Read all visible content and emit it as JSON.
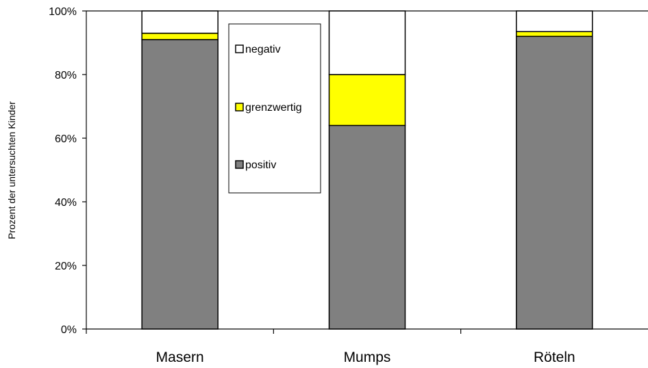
{
  "chart_data": {
    "type": "bar",
    "stacked": true,
    "percent": true,
    "categories": [
      "Masern",
      "Mumps",
      "Röteln"
    ],
    "series": [
      {
        "name": "positiv",
        "values": [
          91,
          64,
          92
        ],
        "color": "#808080"
      },
      {
        "name": "grenzwertig",
        "values": [
          2,
          16,
          1.5
        ],
        "color": "#ffff00"
      },
      {
        "name": "negativ",
        "values": [
          7,
          20,
          6.5
        ],
        "color": "#ffffff"
      }
    ],
    "ylabel": "Prozent der untersuchten Kinder",
    "yticks": [
      "0%",
      "20%",
      "40%",
      "60%",
      "80%",
      "100%"
    ],
    "ylim": [
      0,
      100
    ],
    "legend": {
      "placement": "top-center",
      "order": [
        "negativ",
        "grenzwertig",
        "positiv"
      ]
    }
  }
}
